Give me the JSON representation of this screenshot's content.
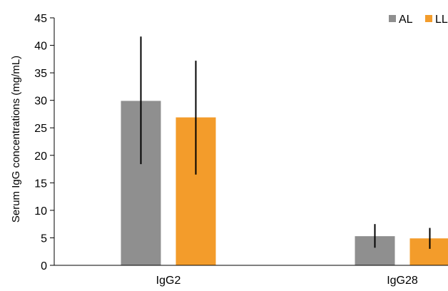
{
  "chart_data": {
    "type": "bar",
    "categories": [
      "IgG2",
      "IgG28"
    ],
    "series": [
      {
        "name": "AL",
        "values": [
          29.9,
          5.3
        ],
        "error_low": [
          18.4,
          3.2
        ],
        "error_high": [
          41.6,
          7.5
        ],
        "color": "#8f8f8f"
      },
      {
        "name": "LL",
        "values": [
          26.9,
          4.9
        ],
        "error_low": [
          16.5,
          3.0
        ],
        "error_high": [
          37.2,
          6.8
        ],
        "color": "#f39c2b"
      }
    ],
    "ylabel": "Serum IgG concentrations (mg/mL)",
    "ylim": [
      0,
      45
    ],
    "yticks": [
      0,
      5,
      10,
      15,
      20,
      25,
      30,
      35,
      40,
      45
    ],
    "legend_position": "top-right",
    "grid": false,
    "error_bar_color": "#000000"
  }
}
